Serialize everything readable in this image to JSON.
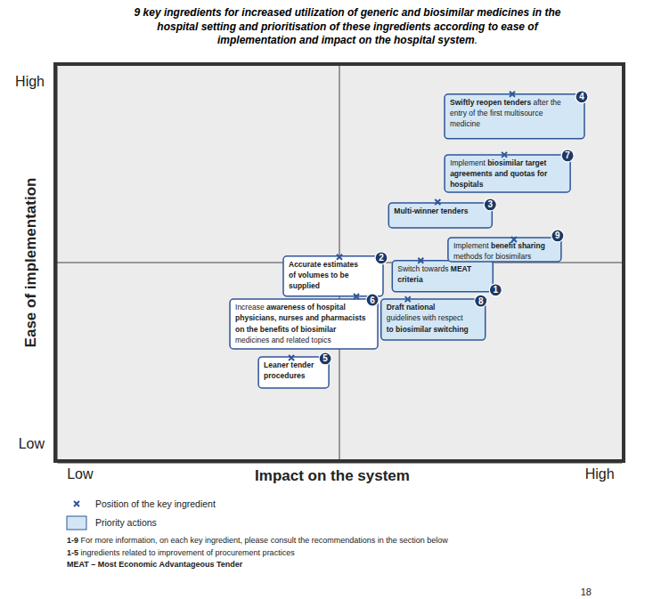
{
  "chart_data": {
    "type": "scatter",
    "title": [
      [
        {
          "text": "9 key ingredients for increased utilization of generic and biosimilar medicines in the",
          "bold": true
        }
      ],
      [
        {
          "text": "hospital setting and prioritisation of these ingredients according to ease of",
          "bold": true
        }
      ],
      [
        {
          "text": "implementation and impact on the hospital system",
          "bold": true
        },
        {
          "text": ".",
          "bold": false
        }
      ]
    ],
    "x_label": "Impact on the system",
    "y_label": "Ease of implementation",
    "xlim": [
      0,
      100
    ],
    "ylim": [
      0,
      100
    ],
    "xticks": [
      {
        "value": 4,
        "label": "Low"
      },
      {
        "value": 96,
        "label": "High"
      }
    ],
    "yticks": [
      {
        "value": 4,
        "label": "Low"
      },
      {
        "value": 96,
        "label": "High"
      }
    ],
    "quadrant_lines": {
      "x": 50,
      "y": 50
    },
    "marker": "x",
    "color": "#2f5597",
    "points": [
      {
        "id": 1,
        "x": 64.4,
        "y": 50.5,
        "priority": true,
        "lines": [
          [
            {
              "text": "Switch towards ",
              "bold": false
            },
            {
              "text": "MEAT",
              "bold": true
            }
          ],
          [
            {
              "text": "criteria",
              "bold": true
            }
          ]
        ]
      },
      {
        "id": 2,
        "x": 50,
        "y": 51.4,
        "priority": false,
        "lines": [
          [
            {
              "text": "Accurate estimates",
              "bold": true
            }
          ],
          [
            {
              "text": "of volumes to be",
              "bold": true
            }
          ],
          [
            {
              "text": "supplied",
              "bold": true
            }
          ]
        ]
      },
      {
        "id": 3,
        "x": 67.4,
        "y": 65.4,
        "priority": true,
        "lines": [
          [
            {
              "text": "Multi-winner tenders",
              "bold": true
            }
          ]
        ]
      },
      {
        "id": 4,
        "x": 80.6,
        "y": 92.8,
        "priority": true,
        "lines": [
          [
            {
              "text": "Swiftly reopen tenders",
              "bold": true
            },
            {
              "text": " after the",
              "bold": false
            }
          ],
          [
            {
              "text": "entry of the first multisource",
              "bold": false
            }
          ],
          [
            {
              "text": "medicine",
              "bold": false
            }
          ]
        ]
      },
      {
        "id": 5,
        "x": 41.5,
        "y": 25.8,
        "priority": false,
        "lines": [
          [
            {
              "text": "Leaner tender",
              "bold": true
            }
          ],
          [
            {
              "text": "procedures",
              "bold": true
            }
          ]
        ]
      },
      {
        "id": 6,
        "x": 53.0,
        "y": 41.4,
        "priority": false,
        "lines": [
          [
            {
              "text": "Increase ",
              "bold": false
            },
            {
              "text": "awareness of hospital",
              "bold": true
            }
          ],
          [
            {
              "text": "physicians, nurses and pharmacists",
              "bold": true
            }
          ],
          [
            {
              "text": "on the benefits of biosimilar",
              "bold": true
            }
          ],
          [
            {
              "text": "medicines and related topics",
              "bold": false
            }
          ]
        ]
      },
      {
        "id": 7,
        "x": 79.2,
        "y": 77.4,
        "priority": true,
        "lines": [
          [
            {
              "text": "Implement ",
              "bold": false
            },
            {
              "text": "biosimilar target",
              "bold": true
            }
          ],
          [
            {
              "text": "agreements and quotas for",
              "bold": true
            }
          ],
          [
            {
              "text": "hospitals",
              "bold": true
            }
          ]
        ]
      },
      {
        "id": 8,
        "x": 62.1,
        "y": 40.7,
        "priority": true,
        "lines": [
          [
            {
              "text": "Draft national",
              "bold": true
            }
          ],
          [
            {
              "text": "guidelines with respect",
              "bold": false
            }
          ],
          [
            {
              "text": "to biosimilar switching",
              "bold": true
            }
          ]
        ]
      },
      {
        "id": 9,
        "x": 80.9,
        "y": 55.9,
        "priority": true,
        "lines": [
          [
            {
              "text": "Implement ",
              "bold": false
            },
            {
              "text": "benefit sharing",
              "bold": true
            }
          ],
          [
            {
              "text": "methods for biosimilars",
              "bold": false
            }
          ]
        ]
      }
    ],
    "legend_items": [
      {
        "name": "Position of the key ingredient",
        "marker": "x"
      },
      {
        "name": "Priority actions",
        "marker": "box",
        "color": "#d3e6f5"
      }
    ],
    "footnotes": [
      [
        {
          "text": "1-9",
          "bold": true
        },
        {
          "text": " For more information, on each key ingredient, please consult the recommendations in the section below",
          "bold": false
        }
      ],
      [
        {
          "text": "1-5",
          "bold": true
        },
        {
          "text": " ingredients related to improvement of procurement practices",
          "bold": false
        }
      ],
      [
        {
          "text": "MEAT – Most Economic Advantageous Tender",
          "bold": true
        }
      ]
    ],
    "page_number": 18
  }
}
